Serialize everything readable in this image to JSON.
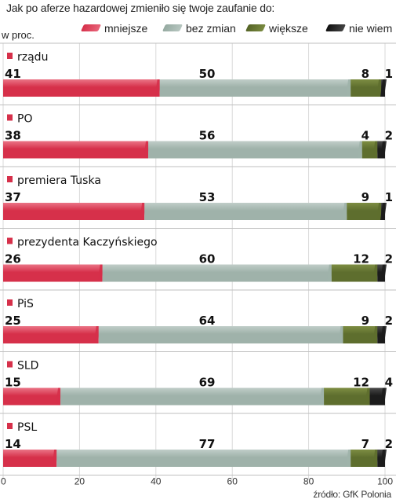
{
  "title": "Jak po aferze hazardowej zmieniło się twoje zaufanie do:",
  "unit_label": "w proc.",
  "legend": [
    {
      "label": "mniejsze",
      "color": "#d6304a"
    },
    {
      "label": "bez zmian",
      "color": "#9fb2aa"
    },
    {
      "label": "większe",
      "color": "#5e6e2e"
    },
    {
      "label": "nie wiem",
      "color": "#1c1c1c"
    }
  ],
  "source": "źródło: GfK Polonia",
  "chart_data": {
    "type": "bar",
    "orientation": "horizontal",
    "stacked": true,
    "categories": [
      "rządu",
      "PO",
      "premiera Tuska",
      "prezydenta Kaczyńskiego",
      "PiS",
      "SLD",
      "PSL"
    ],
    "series": [
      {
        "name": "mniejsze",
        "values": [
          41,
          38,
          37,
          26,
          25,
          15,
          14
        ]
      },
      {
        "name": "bez zmian",
        "values": [
          50,
          56,
          53,
          60,
          64,
          69,
          77
        ]
      },
      {
        "name": "większe",
        "values": [
          8,
          4,
          9,
          12,
          9,
          12,
          7
        ]
      },
      {
        "name": "nie wiem",
        "values": [
          1,
          2,
          1,
          2,
          2,
          4,
          2
        ]
      }
    ],
    "x_ticks": [
      0,
      20,
      40,
      60,
      80,
      100
    ],
    "xlim": [
      0,
      100
    ],
    "grid": true,
    "legend_position": "top"
  }
}
